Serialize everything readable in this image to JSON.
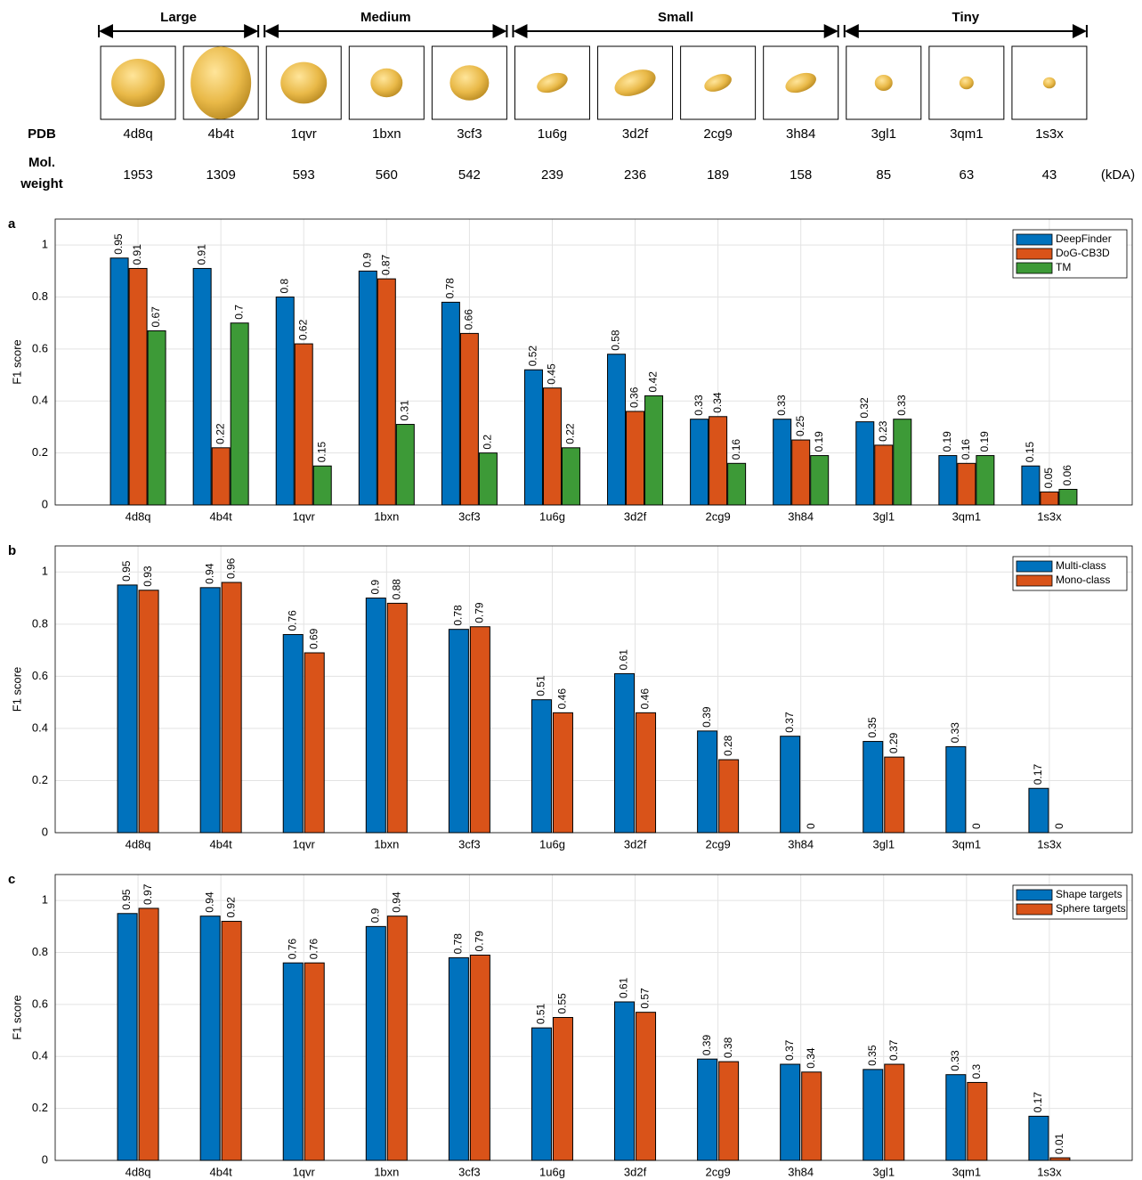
{
  "header": {
    "size_classes": [
      "Large",
      "Medium",
      "Small",
      "Tiny"
    ],
    "pdb_label": "PDB",
    "pdb": [
      "4d8q",
      "4b4t",
      "1qvr",
      "1bxn",
      "3cf3",
      "1u6g",
      "3d2f",
      "2cg9",
      "3h84",
      "3gl1",
      "3qm1",
      "1s3x"
    ],
    "mw_label": [
      "Mol.",
      "weight"
    ],
    "mw": [
      "1953",
      "1309",
      "593",
      "560",
      "542",
      "239",
      "236",
      "189",
      "158",
      "85",
      "63",
      "43"
    ],
    "mw_unit": "(kDA)"
  },
  "chart_data": [
    {
      "type": "bar",
      "panel": "a",
      "y_label": "F1 score",
      "categories": [
        "4d8q",
        "4b4t",
        "1qvr",
        "1bxn",
        "3cf3",
        "1u6g",
        "3d2f",
        "2cg9",
        "3h84",
        "3gl1",
        "3qm1",
        "1s3x"
      ],
      "series": [
        {
          "name": "DeepFinder",
          "color": "#0072bd",
          "values": [
            0.95,
            0.91,
            0.8,
            0.9,
            0.78,
            0.52,
            0.58,
            0.33,
            0.33,
            0.32,
            0.19,
            0.15
          ]
        },
        {
          "name": "DoG-CB3D",
          "color": "#d95319",
          "values": [
            0.91,
            0.22,
            0.62,
            0.87,
            0.66,
            0.45,
            0.36,
            0.34,
            0.25,
            0.23,
            0.16,
            0.05
          ]
        },
        {
          "name": "TM",
          "color": "#3d9a37",
          "values": [
            0.67,
            0.7,
            0.15,
            0.31,
            0.2,
            0.22,
            0.42,
            0.16,
            0.19,
            0.33,
            0.19,
            0.06
          ]
        }
      ],
      "ylim": [
        0,
        1.1
      ],
      "yticks": [
        0,
        0.2,
        0.4,
        0.6,
        0.8,
        1
      ],
      "grid": true,
      "legend": "upper right"
    },
    {
      "type": "bar",
      "panel": "b",
      "y_label": "F1 score",
      "categories": [
        "4d8q",
        "4b4t",
        "1qvr",
        "1bxn",
        "3cf3",
        "1u6g",
        "3d2f",
        "2cg9",
        "3h84",
        "3gl1",
        "3qm1",
        "1s3x"
      ],
      "series": [
        {
          "name": "Multi-class",
          "color": "#0072bd",
          "values": [
            0.95,
            0.94,
            0.76,
            0.9,
            0.78,
            0.51,
            0.61,
            0.39,
            0.37,
            0.35,
            0.33,
            0.17
          ]
        },
        {
          "name": "Mono-class",
          "color": "#d95319",
          "values": [
            0.93,
            0.96,
            0.69,
            0.88,
            0.79,
            0.46,
            0.46,
            0.28,
            0,
            0.29,
            0,
            0
          ]
        }
      ],
      "ylim": [
        0,
        1.1
      ],
      "yticks": [
        0,
        0.2,
        0.4,
        0.6,
        0.8,
        1
      ],
      "grid": true,
      "legend": "upper right"
    },
    {
      "type": "bar",
      "panel": "c",
      "y_label": "F1 score",
      "categories": [
        "4d8q",
        "4b4t",
        "1qvr",
        "1bxn",
        "3cf3",
        "1u6g",
        "3d2f",
        "2cg9",
        "3h84",
        "3gl1",
        "3qm1",
        "1s3x"
      ],
      "series": [
        {
          "name": "Shape targets",
          "color": "#0072bd",
          "values": [
            0.95,
            0.94,
            0.76,
            0.9,
            0.78,
            0.51,
            0.61,
            0.39,
            0.37,
            0.35,
            0.33,
            0.17
          ]
        },
        {
          "name": "Sphere targets",
          "color": "#d95319",
          "values": [
            0.97,
            0.92,
            0.76,
            0.94,
            0.79,
            0.55,
            0.57,
            0.38,
            0.34,
            0.37,
            0.3,
            0.01
          ]
        }
      ],
      "ylim": [
        0,
        1.1
      ],
      "yticks": [
        0,
        0.2,
        0.4,
        0.6,
        0.8,
        1
      ],
      "grid": true,
      "legend": "upper right"
    }
  ]
}
